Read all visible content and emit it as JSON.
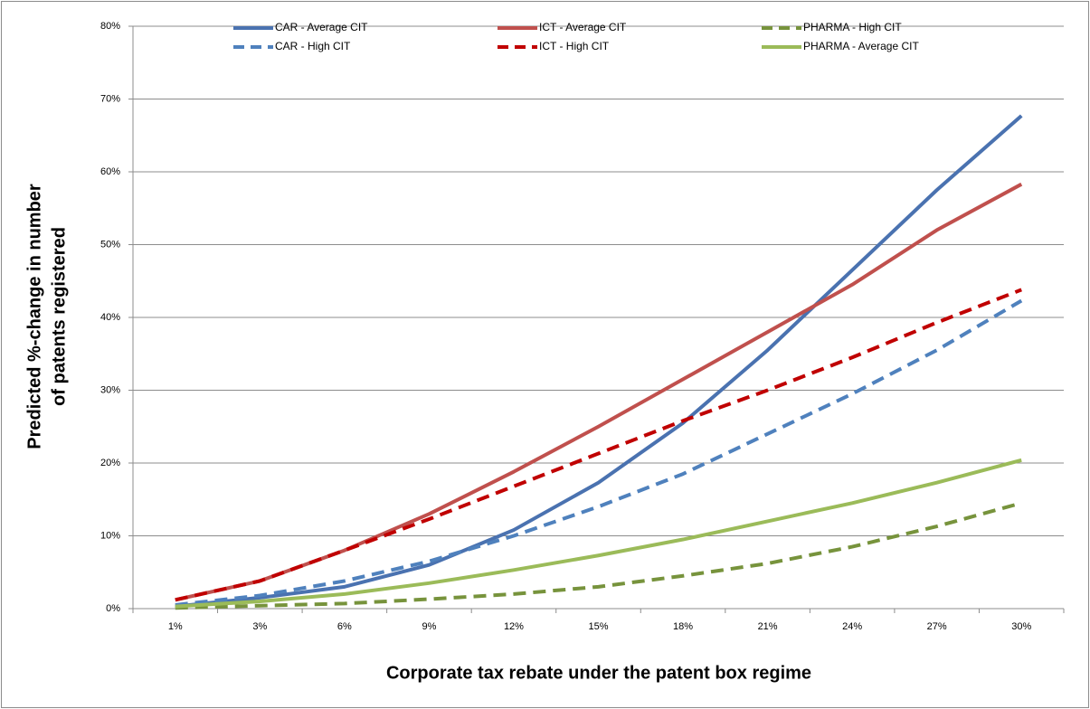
{
  "chart_data": {
    "type": "line",
    "x_label": "Corporate tax rebate under the patent box regime",
    "y_label": [
      "Predicted %-change in number",
      "of patents registered"
    ],
    "categories": [
      "1%",
      "3%",
      "6%",
      "9%",
      "12%",
      "15%",
      "18%",
      "21%",
      "24%",
      "27%",
      "30%"
    ],
    "ylim": [
      0,
      80
    ],
    "yticks": [
      {
        "value": 0,
        "label": "0%"
      },
      {
        "value": 10,
        "label": "10%"
      },
      {
        "value": 20,
        "label": "20%"
      },
      {
        "value": 30,
        "label": "30%"
      },
      {
        "value": 40,
        "label": "40%"
      },
      {
        "value": 50,
        "label": "50%"
      },
      {
        "value": 60,
        "label": "60%"
      },
      {
        "value": 70,
        "label": "70%"
      },
      {
        "value": 80,
        "label": "80%"
      }
    ],
    "grid": true,
    "series": [
      {
        "name": "CAR - Average CIT",
        "color": "#4a72b0",
        "dash": false,
        "values": [
          0.3,
          1.5,
          3,
          6,
          10.8,
          17.3,
          25.5,
          35.5,
          46.5,
          57.5,
          67.7
        ]
      },
      {
        "name": "CAR - High CIT",
        "color": "#4f81bd",
        "dash": true,
        "values": [
          0.5,
          1.8,
          3.8,
          6.5,
          10,
          14,
          18.5,
          24,
          29.5,
          35.5,
          42.3
        ]
      },
      {
        "name": "ICT - Average CIT",
        "color": "#c0504d",
        "dash": false,
        "values": [
          1.2,
          3.8,
          8,
          13,
          18.8,
          25,
          31.5,
          38,
          44.5,
          52,
          58.3
        ]
      },
      {
        "name": "ICT - High CIT",
        "color": "#c00000",
        "dash": true,
        "values": [
          1.2,
          3.8,
          8,
          12.3,
          16.8,
          21.3,
          25.8,
          30,
          34.5,
          39.3,
          43.8
        ]
      },
      {
        "name": "PHARMA - High CIT",
        "color": "#77933c",
        "dash": true,
        "values": [
          0.1,
          0.4,
          0.7,
          1.3,
          2,
          3,
          4.5,
          6.2,
          8.5,
          11.3,
          14.5
        ]
      },
      {
        "name": "PHARMA - Average CIT",
        "color": "#9bbb59",
        "dash": false,
        "values": [
          0.3,
          1,
          2,
          3.5,
          5.3,
          7.3,
          9.5,
          12,
          14.5,
          17.3,
          20.4
        ]
      }
    ]
  }
}
